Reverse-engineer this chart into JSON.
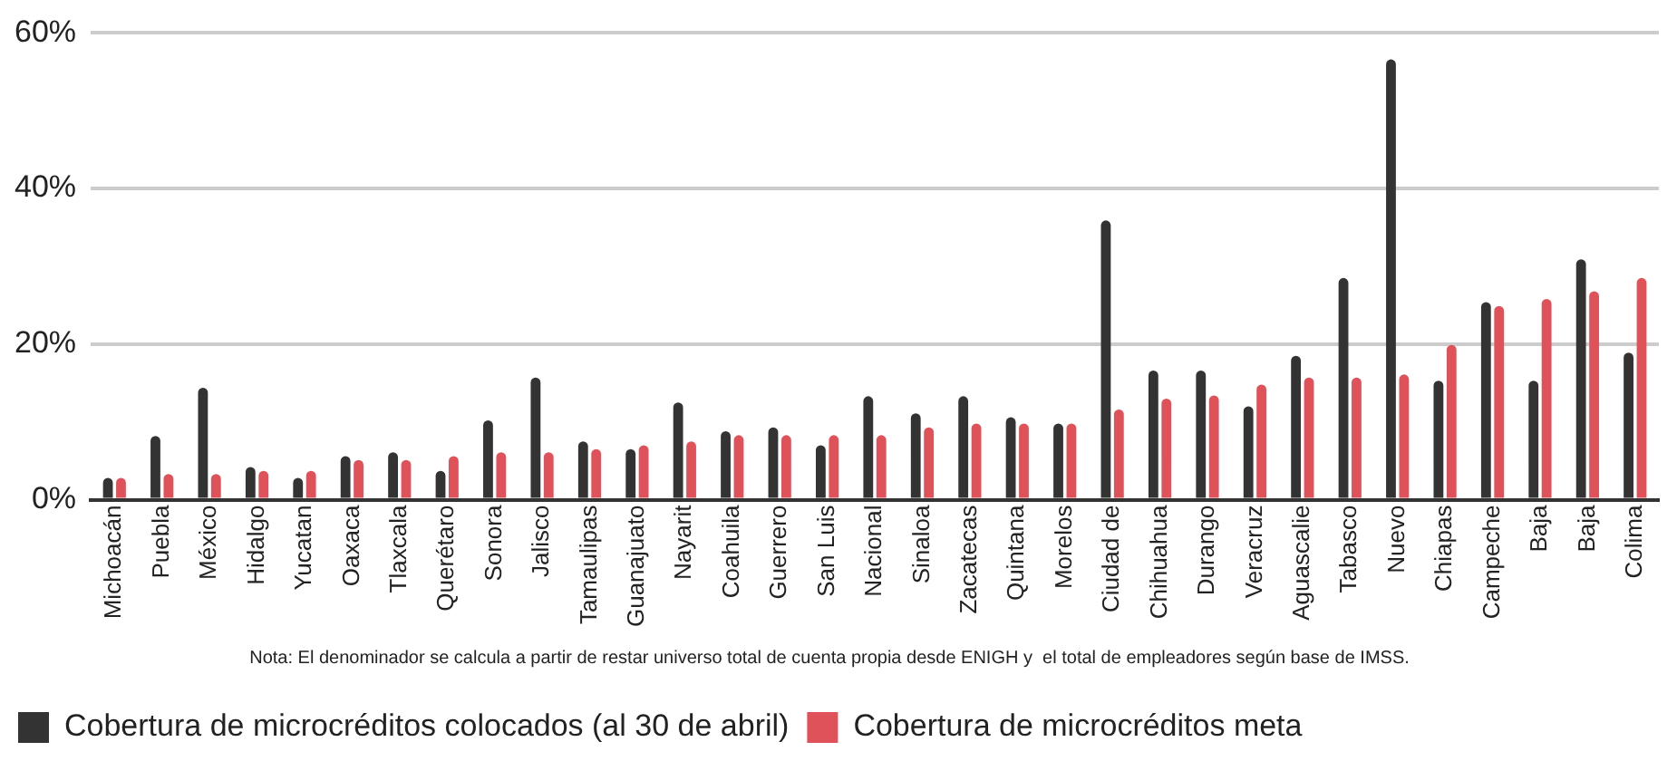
{
  "chart_data": {
    "type": "bar",
    "categories": [
      "Michoacán",
      "Puebla",
      "México",
      "Hidalgo",
      "Yucatan",
      "Oaxaca",
      "Tlaxcala",
      "Querétaro",
      "Sonora",
      "Jalisco",
      "Tamaulipas",
      "Guanajuato",
      "Nayarit",
      "Coahuila",
      "Guerrero",
      "San Luis",
      "Nacional",
      "Sinaloa",
      "Zacatecas",
      "Quintana",
      "Morelos",
      "Ciudad de",
      "Chihuahua",
      "Durango",
      "Veracruz",
      "Aguascalie",
      "Tabasco",
      "Nuevo",
      "Chiapas",
      "Campeche",
      "Baja",
      "Baja",
      "Colima"
    ],
    "series": [
      {
        "name": "Cobertura de microcréditos colocados (al 30 de abril)",
        "color": "#333333",
        "values": [
          2.8,
          8.2,
          14.4,
          4.2,
          2.8,
          5.6,
          6.1,
          3.7,
          10.2,
          15.7,
          7.5,
          6.5,
          12.5,
          8.8,
          9.3,
          7.0,
          13.3,
          11.1,
          13.3,
          10.6,
          9.8,
          35.9,
          16.6,
          16.6,
          12.0,
          18.5,
          28.5,
          56.6,
          15.3,
          25.4,
          15.3,
          30.9,
          18.9
        ]
      },
      {
        "name": "Cobertura de microcréditos meta",
        "color": "#e0525a",
        "values": [
          2.8,
          3.3,
          3.3,
          3.7,
          3.7,
          5.1,
          5.1,
          5.6,
          6.1,
          6.1,
          6.5,
          7.0,
          7.5,
          8.3,
          8.3,
          8.3,
          8.3,
          9.3,
          9.8,
          9.8,
          9.8,
          11.6,
          13.0,
          13.4,
          14.8,
          15.7,
          15.7,
          16.1,
          19.9,
          24.9,
          25.8,
          26.8,
          28.5
        ]
      }
    ],
    "ylim": [
      0,
      60
    ],
    "yticks": [
      {
        "value": 0,
        "label": "0%"
      },
      {
        "value": 20,
        "label": "20%"
      },
      {
        "value": 40,
        "label": "40%"
      },
      {
        "value": 60,
        "label": "60%"
      }
    ],
    "grid": "y",
    "legend": "bottom",
    "annotations": [
      "Nota: El denominador se calcula a partir de restar universo total de cuenta propia desde ENIGH y  el total de empleadores según base de IMSS."
    ]
  }
}
